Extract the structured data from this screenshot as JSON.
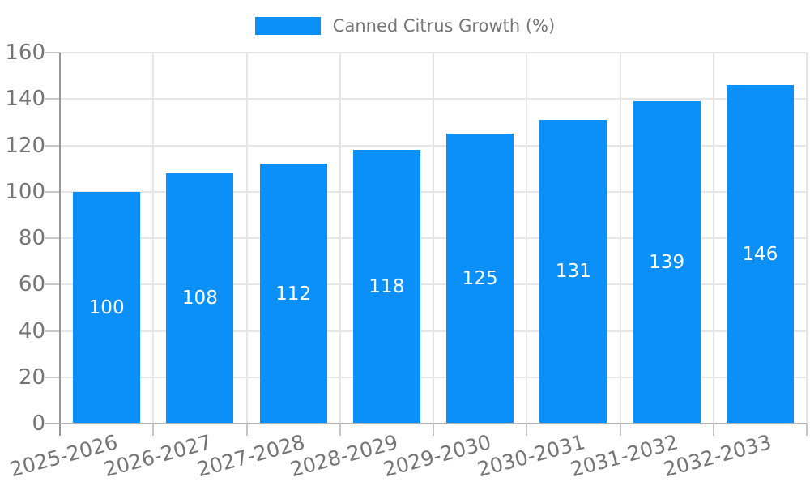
{
  "legend": {
    "label": "Canned Citrus Growth (%)"
  },
  "chart_data": {
    "type": "bar",
    "title": "Canned Citrus Growth (%)",
    "categories": [
      "2025-2026",
      "2026-2027",
      "2027-2028",
      "2028-2029",
      "2029-2030",
      "2030-2031",
      "2031-2032",
      "2032-2033"
    ],
    "series": [
      {
        "name": "Canned Citrus Growth (%)",
        "values": [
          100,
          108,
          112,
          118,
          125,
          131,
          139,
          146
        ]
      }
    ],
    "bar_value_labels": [
      "100",
      "108",
      "112",
      "118",
      "125",
      "131",
      "139",
      "146"
    ],
    "xlabel": "",
    "ylabel": "",
    "ylim": [
      0,
      160
    ],
    "yticks": [
      0,
      20,
      40,
      60,
      80,
      100,
      120,
      140,
      160
    ],
    "grid": true,
    "legend_position": "top-center",
    "colors": {
      "bar": "#0a90f8",
      "axis_label_text": "#757575",
      "bar_label_text": "#ffffff",
      "gridline": "#e6e6e6",
      "y_axis_line": "#999999",
      "x_axis_line": "#b3b3b3",
      "tick": "#c6c6c6"
    }
  }
}
